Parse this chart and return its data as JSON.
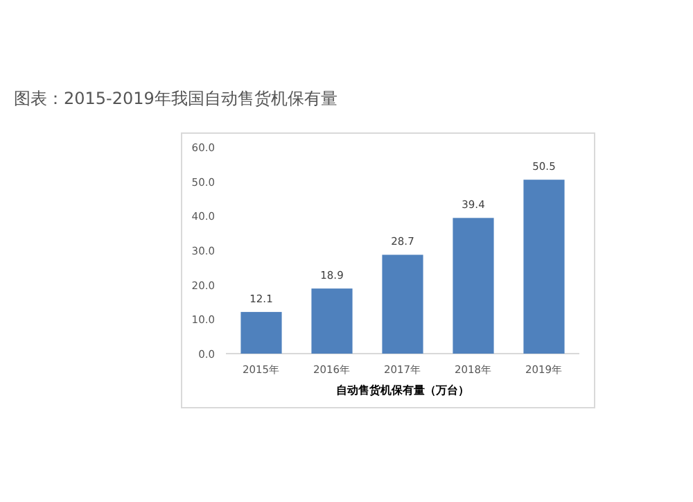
{
  "chart_data": {
    "type": "bar",
    "title": "图表：2015-2019年我国自动售货机保有量",
    "xlabel": "自动售货机保有量（万台）",
    "categories": [
      "2015年",
      "2016年",
      "2017年",
      "2018年",
      "2019年"
    ],
    "values": [
      12.1,
      18.9,
      28.7,
      39.4,
      50.5
    ],
    "color": "#4f81bd",
    "ylim": [
      0,
      60
    ],
    "yticks": [
      {
        "value": 0,
        "label": "0.0"
      },
      {
        "value": 10,
        "label": "10.0"
      },
      {
        "value": 20,
        "label": "20.0"
      },
      {
        "value": 30,
        "label": "30.0"
      },
      {
        "value": 40,
        "label": "40.0"
      },
      {
        "value": 50,
        "label": "50.0"
      },
      {
        "value": 60,
        "label": "60.0"
      }
    ],
    "data_labels": true
  }
}
